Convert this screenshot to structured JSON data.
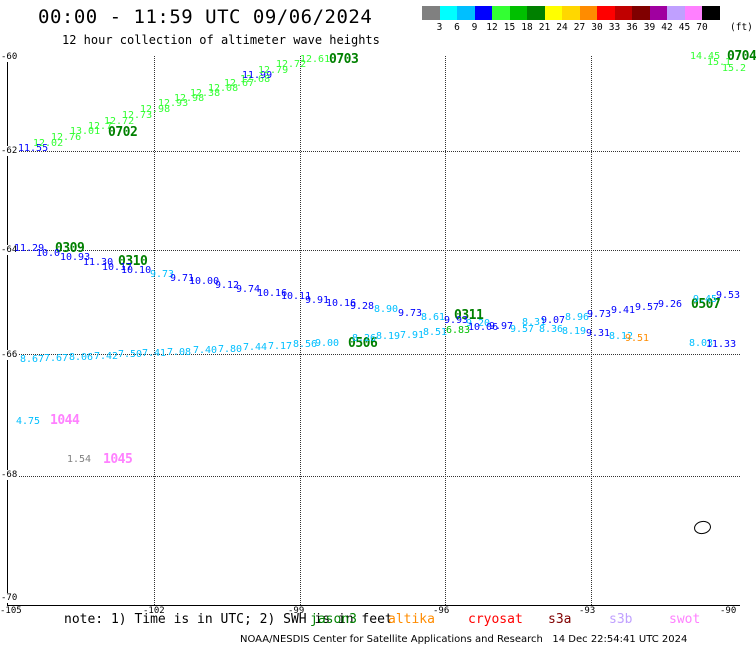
{
  "title": "00:00 - 11:59 UTC 09/06/2024",
  "subtitle": "12 hour collection of altimeter wave heights",
  "colorbar": {
    "colors": [
      "#808080",
      "#00ffff",
      "#00bfff",
      "#0000ff",
      "#33ff33",
      "#00c000",
      "#008000",
      "#ffff00",
      "#ffd700",
      "#ff8c00",
      "#ff0000",
      "#c00000",
      "#800000",
      "#a000a0",
      "#c0a0ff",
      "#ff80ff",
      "#000000"
    ],
    "labels": [
      "3",
      "6",
      "9",
      "12",
      "15",
      "18",
      "21",
      "24",
      "27",
      "30",
      "33",
      "36",
      "39",
      "42",
      "45",
      "70"
    ],
    "unit": "(ft)"
  },
  "axes": {
    "lat_labels": [
      "-60",
      "-62",
      "-64",
      "-66",
      "-68",
      "-70"
    ],
    "lon_labels": [
      "-105",
      "-102",
      "-99",
      "-96",
      "-93",
      "-90"
    ]
  },
  "colors": {
    "jason": "#008000",
    "altika": "#ff8c00",
    "cryosat": "#ff0000",
    "s3a": "#800000",
    "s3b": "#c0a0ff",
    "swot": "#ff80ff",
    "light_green": "#33ff33",
    "dark_green": "#008000",
    "blue": "#0000ff",
    "cyan": "#00bfff"
  },
  "tracks": {
    "t0702": {
      "id": "0702",
      "values": [
        "11.55",
        "12.02",
        "12.76",
        "13.01",
        "12.7",
        "12.72",
        "12.73",
        "12.98",
        "12.93",
        "12.98",
        "12.38",
        "12.08",
        "12.67",
        "12.68",
        "11.99",
        "12.79",
        "12.72",
        "12.61"
      ]
    },
    "t0703": {
      "id": "0703"
    },
    "t0309": {
      "id": "0309",
      "values": [
        "11.29",
        "10.0",
        "10.93",
        "11.30",
        "10.17",
        "10.10"
      ]
    },
    "t0310": {
      "id": "0310",
      "values": [
        "9.73",
        "9.71",
        "10.00",
        "9.12",
        "9.74",
        "10.16",
        "10.11",
        "9.91",
        "10.16",
        "9.28",
        "8.90",
        "9.73",
        "8.61",
        "9.93",
        "9.20",
        "9.97",
        "9.57",
        "8.31",
        "9.07",
        "8.96",
        "9.73",
        "9.41",
        "9.57",
        "9.26",
        "9.45",
        "9.53"
      ]
    },
    "t0311": {
      "id": "0311"
    },
    "t0507": {
      "id": "0507"
    },
    "t0506": {
      "id": "0506",
      "values": [
        "8.67",
        "7.67",
        "8.06",
        "7.42",
        "7.50",
        "7.41",
        "7.08",
        "7.40",
        "7.80",
        "7.44",
        "7.17",
        "8.56",
        "9.00",
        "8.26",
        "8.19",
        "7.91",
        "8.51",
        "6.83",
        "10.06",
        "8.36",
        "8.19",
        "9.31",
        "8.12",
        "8.03",
        "11.33",
        "9.51"
      ]
    },
    "t1044": {
      "id": "1044",
      "value": "4.75"
    },
    "t1045": {
      "id": "1045",
      "value": "1.54"
    },
    "top_right": {
      "values": [
        "14.45",
        "15.1",
        "15.2"
      ],
      "id": "0704"
    }
  },
  "footer": {
    "note": "note: 1) Time is in UTC; 2) SWH is in feet",
    "satellites": [
      "jason3",
      "altika",
      "cryosat",
      "s3a",
      "s3b",
      "swot"
    ],
    "credit": "NOAA/NESDIS Center for Satellite Applications and Research   14 Dec 22:54:41 UTC 2024"
  }
}
